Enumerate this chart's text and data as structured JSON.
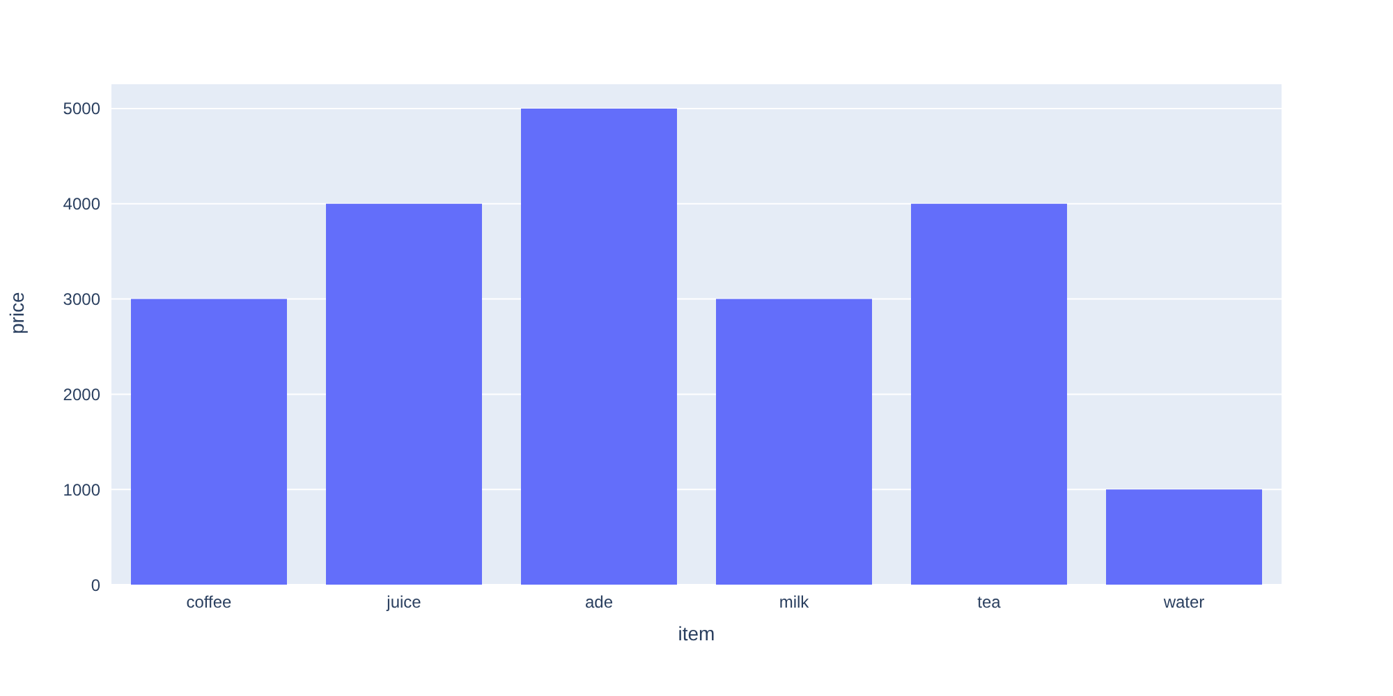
{
  "chart_data": {
    "type": "bar",
    "xlabel": "item",
    "ylabel": "price",
    "categories": [
      "coffee",
      "juice",
      "ade",
      "milk",
      "tea",
      "water"
    ],
    "values": [
      3000,
      4000,
      5000,
      3000,
      4000,
      1000
    ],
    "color": "#636efa",
    "ylim": [
      0,
      5263
    ],
    "yticks": [
      0,
      1000,
      2000,
      3000,
      4000,
      5000
    ],
    "grid": "y",
    "legend": false
  }
}
